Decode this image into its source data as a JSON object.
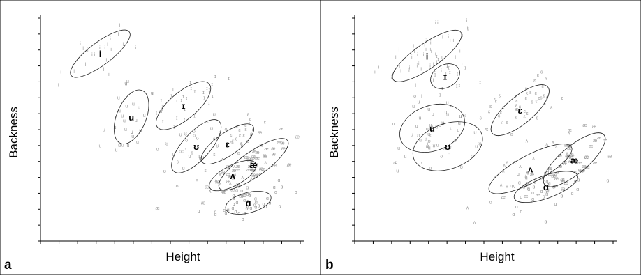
{
  "chart_data": [
    {
      "type": "scatter",
      "panel_label": "a",
      "xlabel": "Height",
      "ylabel": "Backness",
      "grid": false,
      "legend": "none",
      "xlim": [
        0,
        1
      ],
      "ylim": [
        0,
        1
      ],
      "clusters": [
        {
          "label": "i",
          "cx": 0.23,
          "cy": 0.83,
          "rx": 0.14,
          "ry": 0.05,
          "angle": 37,
          "n": 28,
          "marker": "i"
        },
        {
          "label": "u",
          "cx": 0.35,
          "cy": 0.55,
          "rx": 0.11,
          "ry": 0.065,
          "angle": 68,
          "n": 28,
          "marker": "u"
        },
        {
          "label": "ɪ",
          "cx": 0.55,
          "cy": 0.6,
          "rx": 0.13,
          "ry": 0.06,
          "angle": 40,
          "n": 30,
          "marker": "ɪ"
        },
        {
          "label": "ʊ",
          "cx": 0.6,
          "cy": 0.42,
          "rx": 0.13,
          "ry": 0.06,
          "angle": 48,
          "n": 24,
          "marker": "ʊ"
        },
        {
          "label": "ɛ",
          "cx": 0.72,
          "cy": 0.43,
          "rx": 0.12,
          "ry": 0.05,
          "angle": 35,
          "n": 30,
          "marker": "ɛ"
        },
        {
          "label": "æ",
          "cx": 0.82,
          "cy": 0.34,
          "rx": 0.16,
          "ry": 0.055,
          "angle": 35,
          "n": 55,
          "marker": "æ"
        },
        {
          "label": "ʌ",
          "cx": 0.74,
          "cy": 0.29,
          "rx": 0.1,
          "ry": 0.045,
          "angle": 28,
          "n": 20,
          "marker": "ʌ"
        },
        {
          "label": "ɑ",
          "cx": 0.8,
          "cy": 0.17,
          "rx": 0.09,
          "ry": 0.045,
          "angle": 15,
          "n": 45,
          "marker": "ɑ"
        }
      ]
    },
    {
      "type": "scatter",
      "panel_label": "b",
      "xlabel": "Height",
      "ylabel": "Backness",
      "grid": false,
      "legend": "none",
      "xlim": [
        0,
        1
      ],
      "ylim": [
        0,
        1
      ],
      "clusters": [
        {
          "label": "i",
          "cx": 0.28,
          "cy": 0.82,
          "rx": 0.16,
          "ry": 0.055,
          "angle": 35,
          "n": 45,
          "marker": "i"
        },
        {
          "label": "ɪ",
          "cx": 0.35,
          "cy": 0.73,
          "rx": 0.06,
          "ry": 0.05,
          "angle": 30,
          "n": 20,
          "marker": "ɪ"
        },
        {
          "label": "u",
          "cx": 0.3,
          "cy": 0.5,
          "rx": 0.13,
          "ry": 0.1,
          "angle": 20,
          "n": 32,
          "marker": "u"
        },
        {
          "label": "ʊ",
          "cx": 0.36,
          "cy": 0.42,
          "rx": 0.14,
          "ry": 0.1,
          "angle": 20,
          "n": 22,
          "marker": "ʊ"
        },
        {
          "label": "ɛ",
          "cx": 0.64,
          "cy": 0.58,
          "rx": 0.14,
          "ry": 0.06,
          "angle": 40,
          "n": 45,
          "marker": "ɛ"
        },
        {
          "label": "ʌ",
          "cx": 0.68,
          "cy": 0.32,
          "rx": 0.18,
          "ry": 0.06,
          "angle": 28,
          "n": 22,
          "marker": "ʌ"
        },
        {
          "label": "æ",
          "cx": 0.85,
          "cy": 0.36,
          "rx": 0.15,
          "ry": 0.06,
          "angle": 40,
          "n": 45,
          "marker": "æ"
        },
        {
          "label": "ɑ",
          "cx": 0.74,
          "cy": 0.24,
          "rx": 0.13,
          "ry": 0.05,
          "angle": 20,
          "n": 50,
          "marker": "ɑ"
        }
      ]
    }
  ],
  "colors": {
    "points": "#9a9a9a",
    "ellipse": "#222222",
    "axis": "#000000",
    "text": "#000000"
  }
}
